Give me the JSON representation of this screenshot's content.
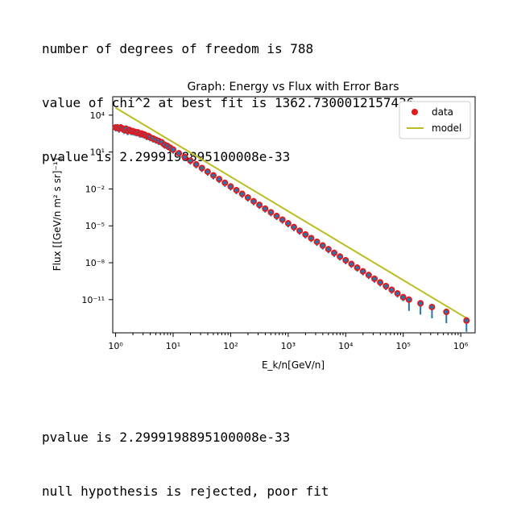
{
  "output_top": {
    "dof_line": "number of degrees of freedom is 788",
    "chi2_line": "value of chi^2 at best fit is 1362.7300012157436",
    "pvalue_line": "pvalue is 2.2999198895100008e-33"
  },
  "output_bottom": {
    "pvalue_line": "pvalue is 2.2999198895100008e-33",
    "verdict_line": "null hypothesis is rejected, poor fit"
  },
  "colors": {
    "data_marker": "#e31a1c",
    "error_bar": "#1f77b4",
    "model_line": "#bcbd22",
    "axis": "#000000"
  },
  "chart_data": {
    "type": "scatter",
    "title": "Graph: Energy vs Flux with Error Bars",
    "xlabel": "E_k/n[GeV/n]",
    "ylabel": "Flux [[GeV/n m² s sr]⁻¹]",
    "xscale": "log",
    "yscale": "log",
    "xlim_log10": [
      -0.05,
      6.25
    ],
    "ylim_log10": [
      -13.7,
      5.5
    ],
    "x_ticks": [
      {
        "exp": 0,
        "label": "10⁰"
      },
      {
        "exp": 1,
        "label": "10¹"
      },
      {
        "exp": 2,
        "label": "10²"
      },
      {
        "exp": 3,
        "label": "10³"
      },
      {
        "exp": 4,
        "label": "10⁴"
      },
      {
        "exp": 5,
        "label": "10⁵"
      },
      {
        "exp": 6,
        "label": "10⁶"
      }
    ],
    "y_ticks": [
      {
        "exp": 4,
        "label": "10⁴"
      },
      {
        "exp": 1,
        "label": "10¹"
      },
      {
        "exp": -2,
        "label": "10⁻²"
      },
      {
        "exp": -5,
        "label": "10⁻⁵"
      },
      {
        "exp": -8,
        "label": "10⁻⁸"
      },
      {
        "exp": -11,
        "label": "10⁻¹¹"
      }
    ],
    "legend": {
      "position": "top-right",
      "entries": [
        "data",
        "model"
      ]
    },
    "grid": false,
    "series": [
      {
        "name": "data",
        "points_log10": [
          [
            0.0,
            3.0
          ],
          [
            0.03,
            3.0
          ],
          [
            0.06,
            2.9
          ],
          [
            0.09,
            3.0
          ],
          [
            0.12,
            2.9
          ],
          [
            0.15,
            2.8
          ],
          [
            0.18,
            2.9
          ],
          [
            0.21,
            2.7
          ],
          [
            0.24,
            2.8
          ],
          [
            0.27,
            2.7
          ],
          [
            0.3,
            2.7
          ],
          [
            0.33,
            2.65
          ],
          [
            0.36,
            2.6
          ],
          [
            0.39,
            2.6
          ],
          [
            0.42,
            2.5
          ],
          [
            0.45,
            2.5
          ],
          [
            0.48,
            2.45
          ],
          [
            0.51,
            2.4
          ],
          [
            0.54,
            2.3
          ],
          [
            0.57,
            2.3
          ],
          [
            0.6,
            2.2
          ],
          [
            0.65,
            2.1
          ],
          [
            0.7,
            2.0
          ],
          [
            0.75,
            1.9
          ],
          [
            0.8,
            1.8
          ],
          [
            0.85,
            1.6
          ],
          [
            0.9,
            1.5
          ],
          [
            0.95,
            1.35
          ],
          [
            1.0,
            1.2
          ],
          [
            1.1,
            0.9
          ],
          [
            1.2,
            0.6
          ],
          [
            1.3,
            0.3
          ],
          [
            1.4,
            0.0
          ],
          [
            1.5,
            -0.3
          ],
          [
            1.6,
            -0.6
          ],
          [
            1.7,
            -0.9
          ],
          [
            1.8,
            -1.2
          ],
          [
            1.9,
            -1.5
          ],
          [
            2.0,
            -1.8
          ],
          [
            2.1,
            -2.1
          ],
          [
            2.2,
            -2.4
          ],
          [
            2.3,
            -2.7
          ],
          [
            2.4,
            -3.0
          ],
          [
            2.5,
            -3.3
          ],
          [
            2.6,
            -3.6
          ],
          [
            2.7,
            -3.9
          ],
          [
            2.8,
            -4.2
          ],
          [
            2.9,
            -4.5
          ],
          [
            3.0,
            -4.8
          ],
          [
            3.1,
            -5.1
          ],
          [
            3.2,
            -5.4
          ],
          [
            3.3,
            -5.7
          ],
          [
            3.4,
            -6.0
          ],
          [
            3.5,
            -6.3
          ],
          [
            3.6,
            -6.6
          ],
          [
            3.7,
            -6.9
          ],
          [
            3.8,
            -7.2
          ],
          [
            3.9,
            -7.5
          ],
          [
            4.0,
            -7.8
          ],
          [
            4.1,
            -8.1
          ],
          [
            4.2,
            -8.4
          ],
          [
            4.3,
            -8.7
          ],
          [
            4.4,
            -9.0
          ],
          [
            4.5,
            -9.3
          ],
          [
            4.6,
            -9.6
          ],
          [
            4.7,
            -9.9
          ],
          [
            4.8,
            -10.2
          ],
          [
            4.9,
            -10.5
          ],
          [
            5.0,
            -10.8
          ],
          [
            5.1,
            -11.0
          ],
          [
            5.3,
            -11.3
          ],
          [
            5.5,
            -11.6
          ],
          [
            5.75,
            -12.0
          ],
          [
            6.1,
            -12.7
          ]
        ]
      },
      {
        "name": "model",
        "x_log10": [
          0.0,
          6.1
        ],
        "y_log10": [
          4.6,
          -12.5
        ]
      }
    ]
  }
}
